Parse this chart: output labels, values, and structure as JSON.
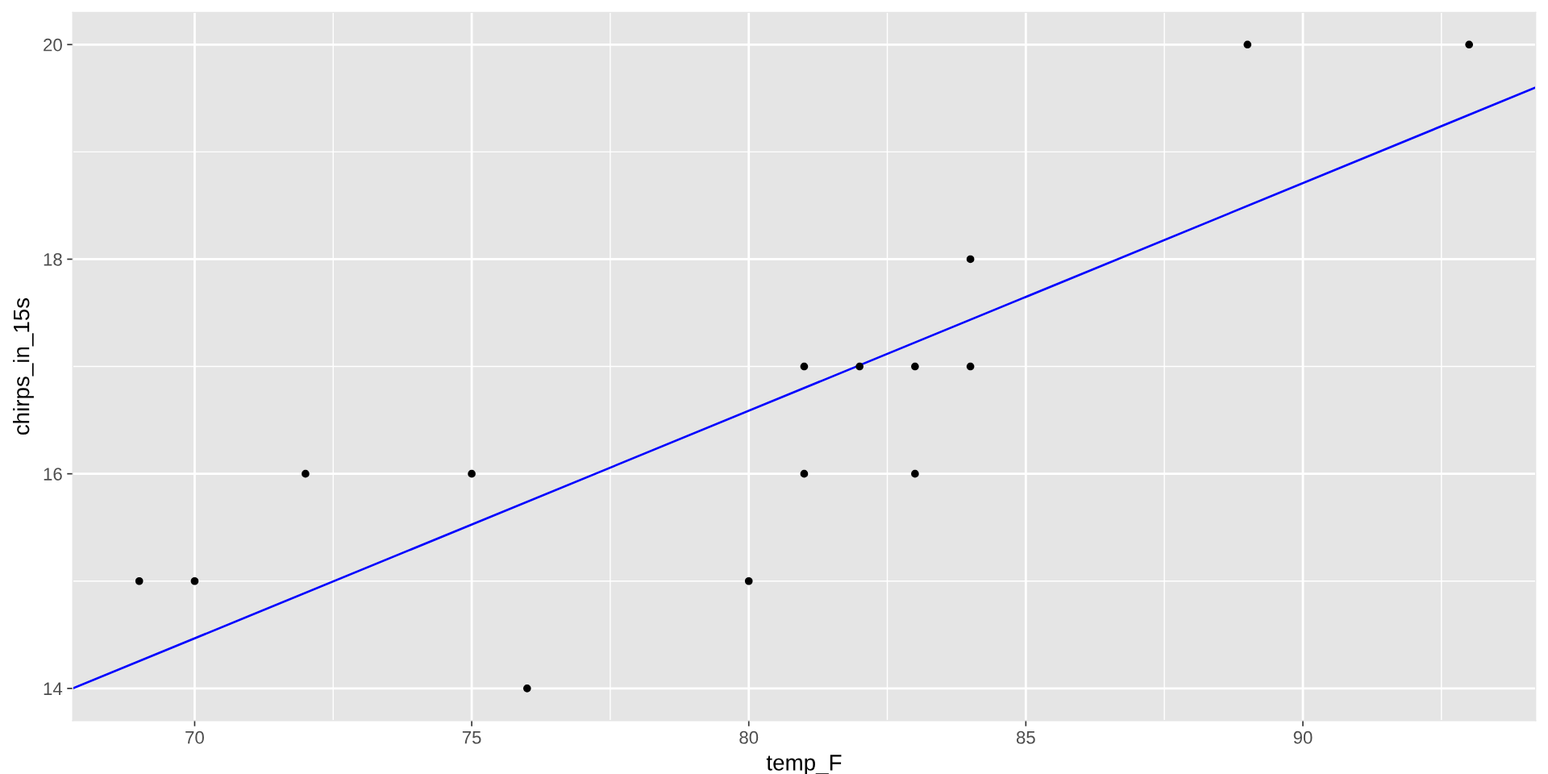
{
  "chart_data": {
    "type": "scatter",
    "xlabel": "temp_F",
    "ylabel": "chirps_in_15s",
    "series": [
      {
        "color": "#000000",
        "marker": "circle",
        "x": [
          69,
          70,
          72,
          75,
          76,
          80,
          81,
          81,
          82,
          83,
          83,
          84,
          84,
          89,
          93
        ],
        "values": [
          15,
          15,
          16,
          16,
          14,
          15,
          17,
          16,
          17,
          17,
          16,
          18,
          17,
          20,
          20
        ]
      },
      {
        "type": "line",
        "color": "#0000ff",
        "line_style": "solid",
        "x": [
          67.8,
          94.2
        ],
        "values": [
          14.0,
          19.6
        ]
      }
    ],
    "xlim": [
      67.8,
      94.2
    ],
    "ylim": [
      13.7,
      20.3
    ],
    "xticks": [
      70,
      75,
      80,
      85,
      90
    ],
    "yticks": [
      14,
      16,
      18,
      20
    ],
    "grid": true
  }
}
